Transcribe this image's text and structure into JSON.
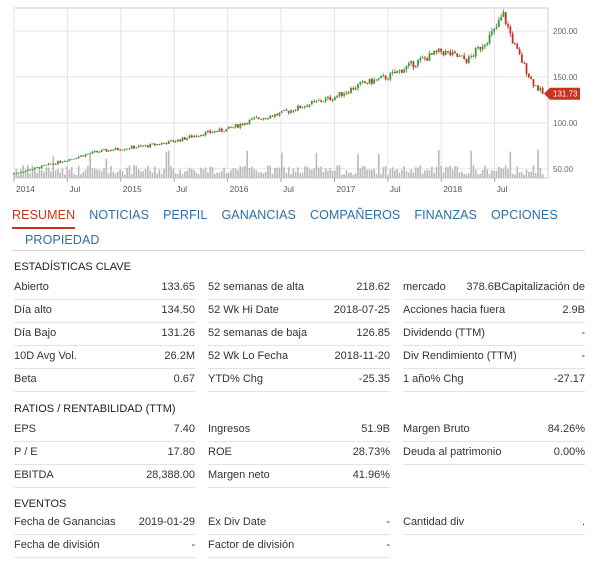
{
  "chart_data": {
    "type": "candlestick",
    "x_ticks": [
      "2014",
      "Jul",
      "2015",
      "Jul",
      "2016",
      "Jul",
      "2017",
      "Jul",
      "2018",
      "Jul"
    ],
    "y_ticks": [
      "200.00",
      "150.00",
      "100.00",
      "50.00"
    ],
    "last_price_label": "131.73",
    "series": [
      {
        "x": 2014.0,
        "y": 45
      },
      {
        "x": 2014.25,
        "y": 52
      },
      {
        "x": 2014.5,
        "y": 60
      },
      {
        "x": 2014.75,
        "y": 68
      },
      {
        "x": 2015.0,
        "y": 72
      },
      {
        "x": 2015.25,
        "y": 75
      },
      {
        "x": 2015.5,
        "y": 80
      },
      {
        "x": 2015.75,
        "y": 88
      },
      {
        "x": 2016.0,
        "y": 93
      },
      {
        "x": 2016.25,
        "y": 104
      },
      {
        "x": 2016.5,
        "y": 110
      },
      {
        "x": 2016.75,
        "y": 120
      },
      {
        "x": 2017.0,
        "y": 128
      },
      {
        "x": 2017.25,
        "y": 142
      },
      {
        "x": 2017.5,
        "y": 150
      },
      {
        "x": 2017.75,
        "y": 165
      },
      {
        "x": 2018.0,
        "y": 178
      },
      {
        "x": 2018.25,
        "y": 168
      },
      {
        "x": 2018.5,
        "y": 200
      },
      {
        "x": 2018.58,
        "y": 218
      },
      {
        "x": 2018.7,
        "y": 180
      },
      {
        "x": 2018.85,
        "y": 145
      },
      {
        "x": 2018.95,
        "y": 131.73
      }
    ],
    "y_range": [
      40,
      225
    ],
    "x_range": [
      2014.0,
      2019.0
    ],
    "colors": {
      "up": "#3a9a3a",
      "down": "#c8331f",
      "volume": "#b9b9b9",
      "grid": "#e5e5e5"
    }
  },
  "tabs": [
    {
      "label": "RESUMEN",
      "active": true
    },
    {
      "label": "NOTICIAS",
      "active": false
    },
    {
      "label": "PERFIL",
      "active": false
    },
    {
      "label": "GANANCIAS",
      "active": false
    },
    {
      "label": "COMPAÑEROS",
      "active": false
    },
    {
      "label": "FINANZAS",
      "active": false
    },
    {
      "label": "OPCIONES",
      "active": false
    },
    {
      "label": "PROPIEDAD",
      "active": false
    }
  ],
  "key_stats": {
    "title": "ESTADÍSTICAS CLAVE",
    "col1": [
      {
        "label": "Abierto",
        "value": "133.65"
      },
      {
        "label": "Día alto",
        "value": "134.50"
      },
      {
        "label": "Día Bajo",
        "value": "131.26"
      },
      {
        "label": "10D Avg Vol.",
        "value": "26.2M"
      },
      {
        "label": "Beta",
        "value": "0.67"
      }
    ],
    "col2": [
      {
        "label": "52 semanas de alta",
        "value": "218.62"
      },
      {
        "label": "52 Wk Hi Date",
        "value": "2018-07-25"
      },
      {
        "label": "52 semanas de baja",
        "value": "126.85"
      },
      {
        "label": "52 Wk Lo Fecha",
        "value": "2018-11-20"
      },
      {
        "label": "YTD% Chg",
        "value": "-25.35"
      }
    ],
    "col3": [
      {
        "label": "mercado",
        "value": "378.6BCapitalización de"
      },
      {
        "label": "Acciones hacia fuera",
        "value": "2.9B"
      },
      {
        "label": "Dividendo (TTM)",
        "value": "-"
      },
      {
        "label": "Div Rendimiento (TTM)",
        "value": "-"
      },
      {
        "label": "1 año% Chg",
        "value": "-27.17"
      }
    ]
  },
  "ratios": {
    "title": "RATIOS / RENTABILIDAD (TTM)",
    "col1": [
      {
        "label": "EPS",
        "value": "7.40"
      },
      {
        "label": "P / E",
        "value": "17.80"
      },
      {
        "label": "EBITDA",
        "value": "28,388.00"
      }
    ],
    "col2": [
      {
        "label": "Ingresos",
        "value": "51.9B"
      },
      {
        "label": "ROE",
        "value": "28.73%"
      },
      {
        "label": "Margen neto",
        "value": "41.96%"
      }
    ],
    "col3": [
      {
        "label": "Margen Bruto",
        "value": "84.26%"
      },
      {
        "label": "Deuda al patrimonio",
        "value": "0.00%"
      }
    ]
  },
  "events": {
    "title": "EVENTOS",
    "col1": [
      {
        "label": "Fecha de Ganancias",
        "value": "2019-01-29"
      },
      {
        "label": "Fecha de división",
        "value": "-"
      }
    ],
    "col2": [
      {
        "label": "Ex Div Date",
        "value": "-"
      },
      {
        "label": "Factor de división",
        "value": "-"
      }
    ],
    "col3": [
      {
        "label": "Cantidad div",
        "value": "."
      }
    ]
  }
}
